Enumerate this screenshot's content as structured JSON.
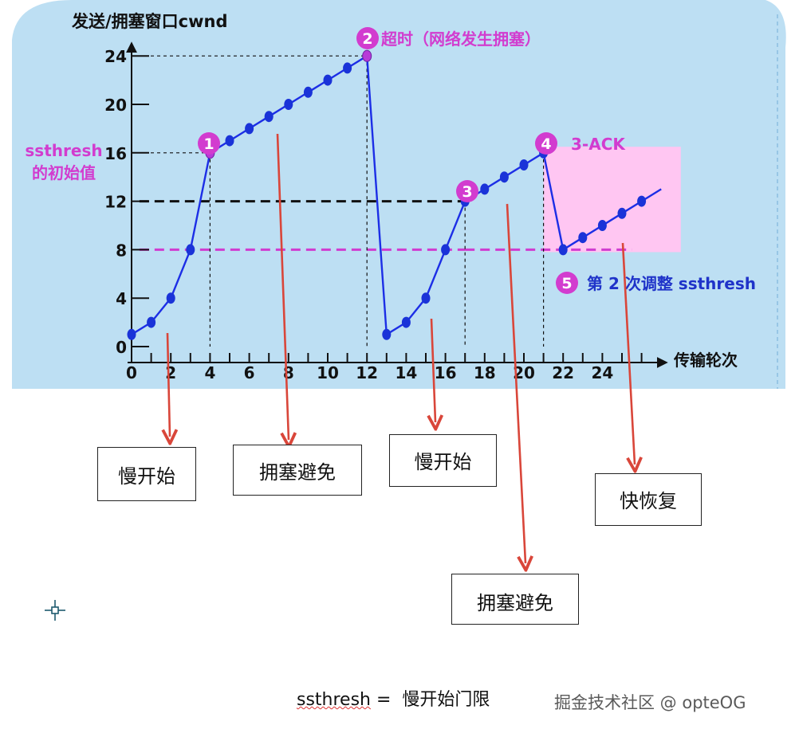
{
  "chart_data": {
    "type": "line",
    "title": "发送/拥塞窗口cwnd",
    "xlabel": "传输轮次",
    "ylabel": "",
    "x_ticks": [
      "0",
      "2",
      "4",
      "6",
      "8",
      "10",
      "12",
      "14",
      "16",
      "18",
      "20",
      "22",
      "24"
    ],
    "y_ticks": [
      "0",
      "4",
      "8",
      "12",
      "16",
      "20",
      "24"
    ],
    "xlim": [
      0,
      27
    ],
    "ylim": [
      0,
      24
    ],
    "series": [
      {
        "name": "",
        "x": [
          0,
          1,
          2,
          3,
          4,
          5,
          6,
          7,
          8,
          9,
          10,
          11,
          12,
          13,
          14,
          15,
          16,
          17,
          18,
          19,
          20,
          21,
          22,
          23,
          24,
          25,
          26
        ],
        "y": [
          1,
          2,
          4,
          8,
          16,
          17,
          18,
          19,
          20,
          21,
          22,
          23,
          24,
          1,
          2,
          4,
          8,
          12,
          13,
          14,
          15,
          16,
          8,
          9,
          10,
          11,
          12
        ]
      }
    ],
    "trend_end": {
      "x": 27,
      "y": 13
    },
    "thresholds": [
      {
        "value": 12,
        "color": "#111111"
      },
      {
        "value": 8,
        "color": "#d03cd0"
      }
    ],
    "fast_recovery_region": {
      "x_start": 21,
      "x_end": 28,
      "y_start": 7.8,
      "y_end": 16.5
    },
    "annotations": [
      {
        "number": "1",
        "text": ""
      },
      {
        "number": "2",
        "text": "超时（网络发生拥塞）"
      },
      {
        "number": "3",
        "text": ""
      },
      {
        "number": "4",
        "text": "3-ACK"
      },
      {
        "number": "5",
        "text": "第 2 次调整 ssthresh"
      }
    ],
    "side_label_lines": [
      "ssthresh",
      "的初始值"
    ]
  },
  "boxes": [
    "慢开始",
    "拥塞避免",
    "慢开始",
    "拥塞避免",
    "快恢复"
  ],
  "footer": {
    "term": "ssthresh",
    "equals": " =  ",
    "definition": "慢开始门限"
  },
  "watermark": "掘金技术社区 @ opteOG",
  "colors": {
    "background": "#bddff3",
    "line": "#1c2ee6",
    "marker": "#1a33d8",
    "accent": "#d23ccf",
    "highlight": "#ffc6f2",
    "arrow": "#d9463a",
    "axis": "#111111"
  }
}
